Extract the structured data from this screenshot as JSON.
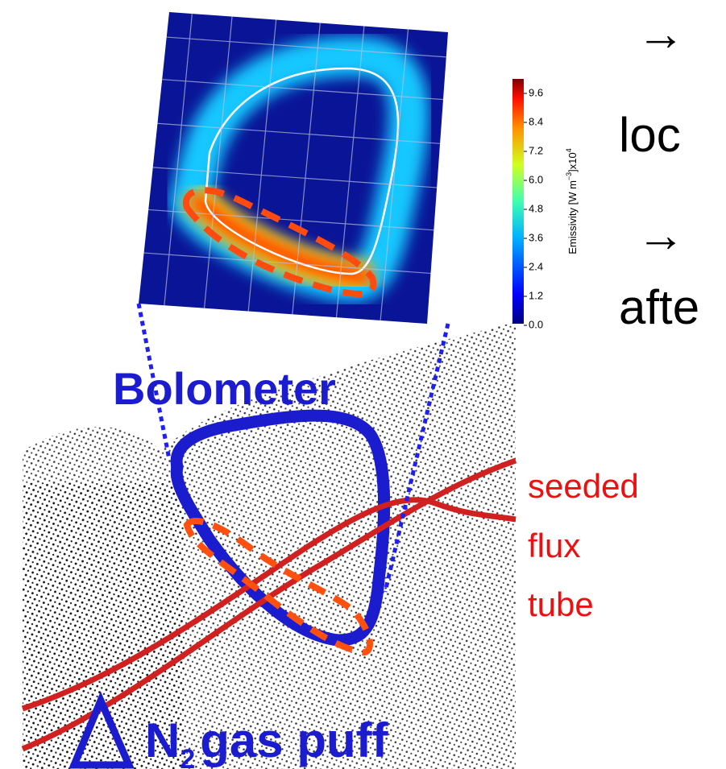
{
  "slide": {
    "bullets": [
      {
        "arrow": "→",
        "text": "loc"
      },
      {
        "arrow": "→",
        "text": "afte"
      }
    ],
    "colorbar": {
      "ticks": [
        "9.6",
        "8.4",
        "7.2",
        "6.0",
        "4.8",
        "3.6",
        "2.4",
        "1.2",
        "0.0"
      ],
      "label": {
        "main": "Emissivity [W m",
        "exp1": "−3",
        "mid": "]x10",
        "exp2": "4"
      }
    },
    "diagram": {
      "bolometer": "Bolometer",
      "flux_tube": [
        "seeded",
        "flux",
        "tube"
      ],
      "gas_puff": {
        "species": "N",
        "subscript": "2",
        "text": "gas puff"
      }
    }
  }
}
